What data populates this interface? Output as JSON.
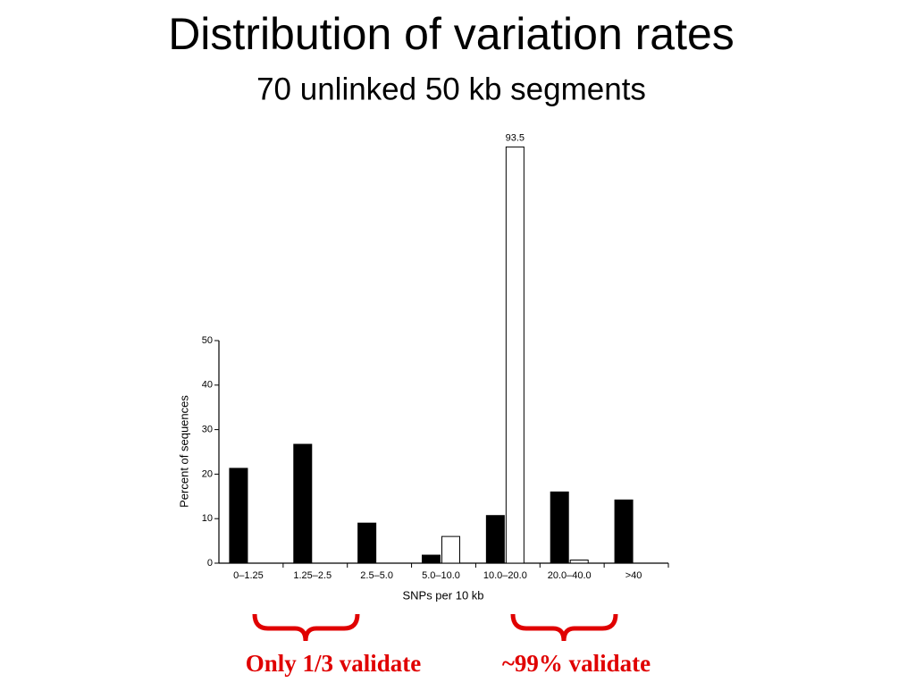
{
  "chart_data": {
    "type": "bar",
    "title": "Distribution of variation rates",
    "subtitle": "70 unlinked 50 kb segments",
    "x_label": "SNPs per 10 kb",
    "y_label": "Percent of sequences",
    "categories": [
      "0–1.25",
      "1.25–2.5",
      "2.5–5.0",
      "5.0–10.0",
      "10.0–20.0",
      "20.0–40.0",
      ">40"
    ],
    "series": [
      {
        "color": "#000000",
        "values": [
          21.3,
          26.7,
          9,
          1.8,
          10.7,
          16,
          14.2
        ]
      },
      {
        "color": "#ffffff",
        "values": [
          0,
          0,
          0,
          6,
          93.5,
          0.7,
          0
        ],
        "value_labels": [
          null,
          null,
          null,
          null,
          "93.5",
          null,
          null
        ]
      }
    ],
    "ylim": [
      0,
      50
    ],
    "yticks": [
      0,
      10,
      20,
      30,
      40,
      50
    ],
    "annotations": [
      "Only 1/3 validate",
      "~99% validate"
    ]
  }
}
